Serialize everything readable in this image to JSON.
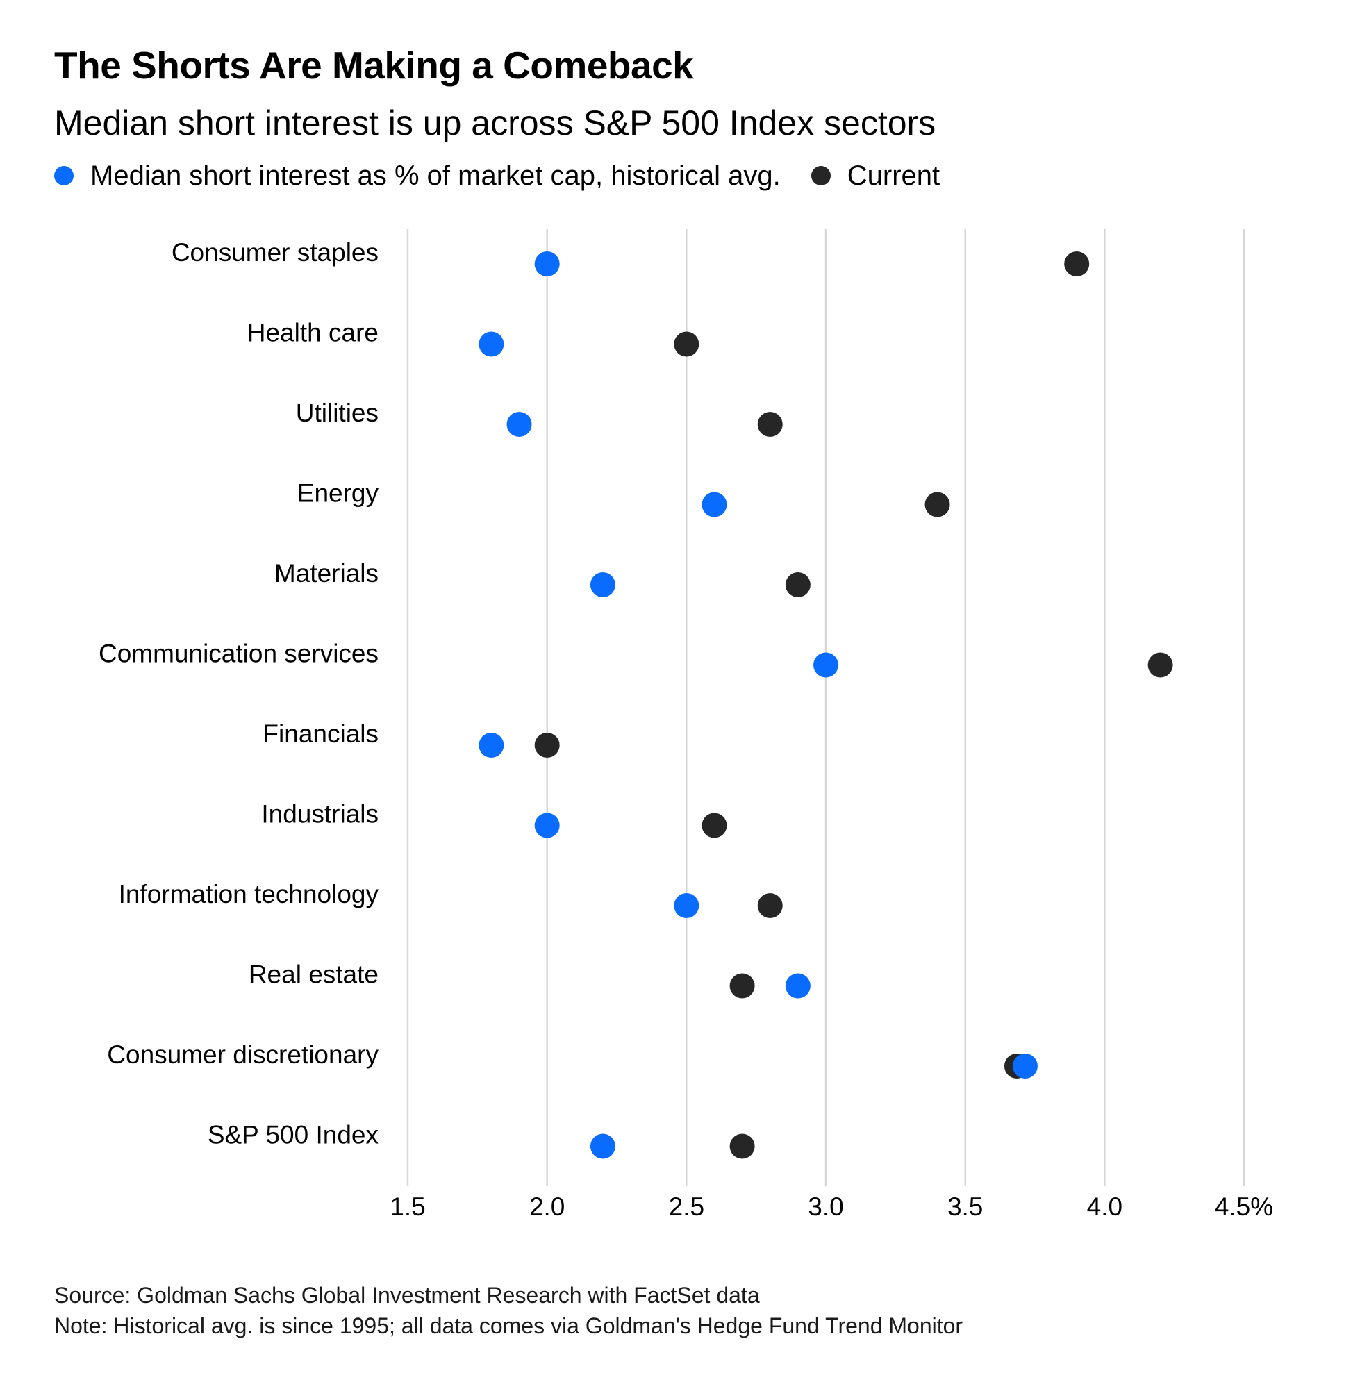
{
  "header": {
    "title": "The Shorts Are Making a Comeback",
    "subtitle": "Median short interest is up across S&P 500 Index sectors"
  },
  "legend": {
    "historical_label": "Median short interest as % of market cap, historical avg.",
    "current_label": "Current"
  },
  "colors": {
    "historical": "#0a6cff",
    "current": "#262626",
    "grid": "#d7d7d7"
  },
  "chart_data": {
    "type": "scatter",
    "subtype": "dot-plot",
    "title": "The Shorts Are Making a Comeback",
    "subtitle": "Median short interest is up across S&P 500 Index sectors",
    "xlabel": "",
    "ylabel": "",
    "xlim": [
      1.5,
      4.5
    ],
    "x_ticks": [
      1.5,
      2.0,
      2.5,
      3.0,
      3.5,
      4.0,
      4.5
    ],
    "x_tick_labels": [
      "1.5",
      "2.0",
      "2.5",
      "3.0",
      "3.5",
      "4.0",
      "4.5%"
    ],
    "grid": true,
    "legend_position": "top-left",
    "categories": [
      "Consumer staples",
      "Health care",
      "Utilities",
      "Energy",
      "Materials",
      "Communication services",
      "Financials",
      "Industrials",
      "Information technology",
      "Real estate",
      "Consumer discretionary",
      "S&P 500 Index"
    ],
    "series": [
      {
        "name": "Median short interest as % of market cap, historical avg.",
        "key": "historical",
        "values": [
          2.0,
          1.8,
          1.9,
          2.6,
          2.2,
          3.0,
          1.8,
          2.0,
          2.5,
          2.9,
          3.7,
          2.2
        ]
      },
      {
        "name": "Current",
        "key": "current",
        "values": [
          3.9,
          2.5,
          2.8,
          3.4,
          2.9,
          4.2,
          2.0,
          2.6,
          2.8,
          2.7,
          3.7,
          2.7
        ]
      }
    ]
  },
  "footer": {
    "source": "Source: Goldman Sachs Global Investment Research with FactSet data",
    "note": "Note: Historical avg. is since 1995; all data comes via Goldman's Hedge Fund Trend Monitor"
  }
}
